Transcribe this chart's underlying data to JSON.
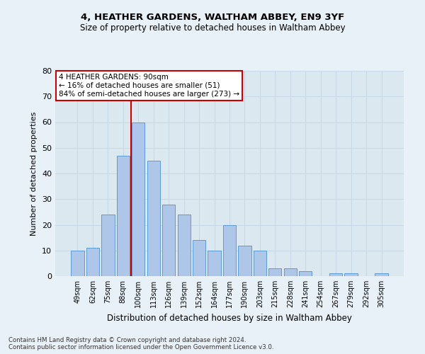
{
  "title1": "4, HEATHER GARDENS, WALTHAM ABBEY, EN9 3YF",
  "title2": "Size of property relative to detached houses in Waltham Abbey",
  "xlabel": "Distribution of detached houses by size in Waltham Abbey",
  "ylabel": "Number of detached properties",
  "categories": [
    "49sqm",
    "62sqm",
    "75sqm",
    "88sqm",
    "100sqm",
    "113sqm",
    "126sqm",
    "139sqm",
    "152sqm",
    "164sqm",
    "177sqm",
    "190sqm",
    "203sqm",
    "215sqm",
    "228sqm",
    "241sqm",
    "254sqm",
    "267sqm",
    "279sqm",
    "292sqm",
    "305sqm"
  ],
  "values": [
    10,
    11,
    24,
    47,
    60,
    45,
    28,
    24,
    14,
    10,
    20,
    12,
    10,
    3,
    3,
    2,
    0,
    1,
    1,
    0,
    1
  ],
  "bar_color": "#aec6e8",
  "bar_edge_color": "#5b9bd5",
  "vline_x": 3.5,
  "vline_color": "#cc0000",
  "annotation_line1": "4 HEATHER GARDENS: 90sqm",
  "annotation_line2": "← 16% of detached houses are smaller (51)",
  "annotation_line3": "84% of semi-detached houses are larger (273) →",
  "annotation_box_color": "#ffffff",
  "annotation_box_edge_color": "#cc0000",
  "ylim": [
    0,
    80
  ],
  "yticks": [
    0,
    10,
    20,
    30,
    40,
    50,
    60,
    70,
    80
  ],
  "grid_color": "#c8d8e8",
  "background_color": "#dce8f0",
  "fig_background_color": "#e8f0f8",
  "footnote1": "Contains HM Land Registry data © Crown copyright and database right 2024.",
  "footnote2": "Contains public sector information licensed under the Open Government Licence v3.0."
}
